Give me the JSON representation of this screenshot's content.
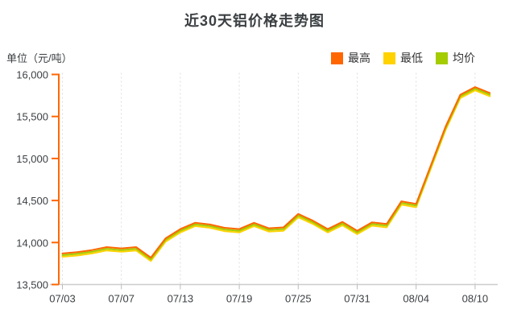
{
  "page": {
    "title": "近30天铝价格走势图",
    "unit_label": "单位（元/吨）"
  },
  "legend": {
    "items": [
      {
        "label": "最高",
        "color": "#ff6600"
      },
      {
        "label": "最低",
        "color": "#ffd200"
      },
      {
        "label": "均价",
        "color": "#a4cc00"
      }
    ]
  },
  "chart_data": {
    "type": "line",
    "title": "近30天铝价格走势图",
    "ylabel": "单位（元/吨）",
    "x": [
      "07/03",
      "07/04",
      "07/05",
      "07/06",
      "07/07",
      "07/10",
      "07/11",
      "07/12",
      "07/13",
      "07/14",
      "07/17",
      "07/18",
      "07/19",
      "07/20",
      "07/21",
      "07/24",
      "07/25",
      "07/26",
      "07/27",
      "07/28",
      "07/31",
      "08/01",
      "08/02",
      "08/03",
      "08/04",
      "08/07",
      "08/08",
      "08/09",
      "08/10",
      "08/11"
    ],
    "xtick_indices": [
      0,
      4,
      8,
      12,
      16,
      20,
      24,
      28
    ],
    "xtick_labels": [
      "07/03",
      "07/07",
      "07/13",
      "07/19",
      "07/25",
      "07/31",
      "08/04",
      "08/10"
    ],
    "series": [
      {
        "name": "最高",
        "color": "#ff6600",
        "values": [
          13870,
          13885,
          13910,
          13945,
          13930,
          13945,
          13820,
          14050,
          14160,
          14235,
          14215,
          14175,
          14160,
          14235,
          14170,
          14180,
          14340,
          14260,
          14160,
          14245,
          14140,
          14240,
          14220,
          14490,
          14460,
          14920,
          15380,
          15760,
          15850,
          15780
        ]
      },
      {
        "name": "最低",
        "color": "#ffd200",
        "values": [
          13830,
          13845,
          13870,
          13905,
          13890,
          13905,
          13780,
          14010,
          14120,
          14195,
          14175,
          14135,
          14120,
          14195,
          14130,
          14140,
          14300,
          14220,
          14120,
          14205,
          14100,
          14200,
          14180,
          14450,
          14420,
          14880,
          15340,
          15720,
          15810,
          15740
        ]
      },
      {
        "name": "均价",
        "color": "#a4cc00",
        "values": [
          13850,
          13865,
          13890,
          13925,
          13910,
          13925,
          13800,
          14030,
          14140,
          14215,
          14195,
          14155,
          14140,
          14215,
          14150,
          14160,
          14320,
          14240,
          14140,
          14225,
          14120,
          14220,
          14200,
          14470,
          14440,
          14900,
          15360,
          15740,
          15830,
          15760
        ]
      }
    ],
    "ylim": [
      13500,
      16000
    ],
    "yticks": [
      13500,
      14000,
      14500,
      15000,
      15500,
      16000
    ],
    "grid": "vertical-dashed",
    "legend_position": "top-right",
    "axis_colors": {
      "y_axis": "#ff6600",
      "x_axis": "#cccccc",
      "gridline": "#dddddd",
      "tick_label": "#3c4043"
    }
  }
}
